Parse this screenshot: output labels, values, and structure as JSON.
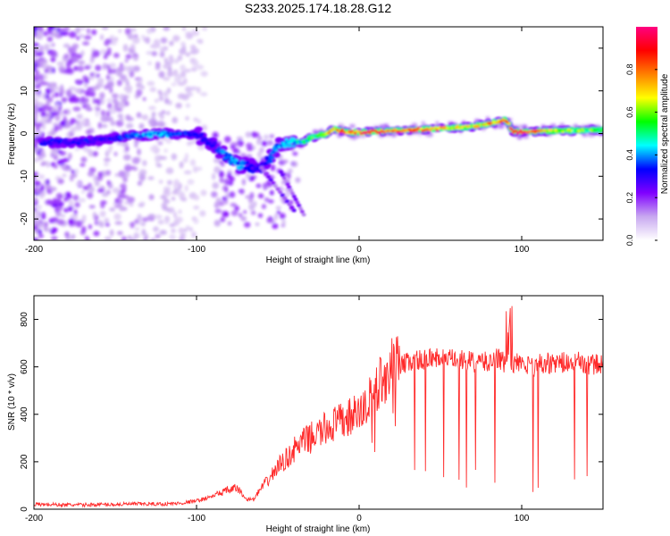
{
  "title": "S233.2025.174.18.28.G12",
  "chart_data": [
    {
      "type": "heatmap",
      "xlabel": "Height of straight line (km)",
      "ylabel": "Frequency (Hz)",
      "xlim": [
        -200,
        150
      ],
      "ylim": [
        -25,
        25
      ],
      "xticks": [
        -200,
        -100,
        0,
        100
      ],
      "yticks": [
        -20,
        -10,
        0,
        10,
        20
      ],
      "grid": false,
      "colorbar": {
        "label": "Normalized spectral amplitude",
        "range": [
          0,
          1
        ],
        "ticks": [
          "0.0",
          "0.2",
          "0.4",
          "0.6",
          "0.8"
        ],
        "colors": [
          "#ffffff",
          "#c8a8f0",
          "#8000ff",
          "#0000ff",
          "#00ffff",
          "#00ff00",
          "#ffff00",
          "#ff8000",
          "#ff0000",
          "#ff0080"
        ]
      },
      "ridge": {
        "x": [
          -195,
          -180,
          -170,
          -160,
          -150,
          -140,
          -130,
          -120,
          -110,
          -100,
          -95,
          -90,
          -85,
          -80,
          -75,
          -70,
          -65,
          -60,
          -55,
          -50,
          -45,
          -40,
          -35,
          -30,
          -25,
          -20,
          -15,
          -10,
          -5,
          0,
          10,
          20,
          30,
          40,
          50,
          60,
          70,
          75,
          80,
          85,
          90,
          95,
          100,
          110,
          120,
          130,
          140,
          150
        ],
        "y": [
          -2,
          -2,
          -2,
          -1.5,
          -1,
          -0.5,
          -0.3,
          0,
          0,
          -0.3,
          -1,
          -2.5,
          -4.5,
          -6,
          -7,
          -7.5,
          -8,
          -8,
          -6,
          -3,
          -2,
          -2,
          -2,
          -1,
          -0.5,
          0,
          1,
          0.5,
          0.3,
          0.3,
          0.5,
          0.6,
          0.8,
          1,
          1.2,
          1.4,
          1.6,
          2,
          2.4,
          2.8,
          3.2,
          0.4,
          0.4,
          0.5,
          0.6,
          0.7,
          0.8,
          0.8
        ],
        "amplitude": [
          0.3,
          0.3,
          0.3,
          0.3,
          0.3,
          0.35,
          0.4,
          0.4,
          0.35,
          0.3,
          0.3,
          0.3,
          0.35,
          0.4,
          0.4,
          0.35,
          0.3,
          0.3,
          0.35,
          0.4,
          0.4,
          0.45,
          0.5,
          0.55,
          0.6,
          0.7,
          0.8,
          0.85,
          0.85,
          0.9,
          0.95,
          0.95,
          0.9,
          0.85,
          0.8,
          0.7,
          0.7,
          0.7,
          0.8,
          0.85,
          0.9,
          0.95,
          0.95,
          0.9,
          0.7,
          0.6,
          0.6,
          0.6
        ]
      }
    },
    {
      "type": "line",
      "xlabel": "Height of straight line (km)",
      "ylabel": "SNR (10 * v/v)",
      "xlim": [
        -200,
        150
      ],
      "ylim": [
        0,
        900
      ],
      "xticks": [
        -200,
        -100,
        0,
        100
      ],
      "yticks": [
        0,
        200,
        400,
        600,
        800
      ],
      "grid": false,
      "series": [
        {
          "color": "#ff2a2a",
          "x": [
            -200,
            -190,
            -180,
            -170,
            -160,
            -150,
            -140,
            -130,
            -120,
            -110,
            -100,
            -95,
            -90,
            -85,
            -80,
            -75,
            -70,
            -65,
            -60,
            -55,
            -50,
            -45,
            -40,
            -35,
            -30,
            -25,
            -20,
            -15,
            -10,
            -5,
            0,
            5,
            10,
            15,
            20,
            25,
            30,
            35,
            40,
            45,
            50,
            55,
            60,
            65,
            70,
            75,
            80,
            85,
            90,
            95,
            100,
            105,
            110,
            115,
            120,
            125,
            130,
            135,
            140,
            145,
            150
          ],
          "y": [
            20,
            20,
            18,
            18,
            20,
            20,
            22,
            22,
            22,
            25,
            35,
            45,
            55,
            70,
            80,
            90,
            45,
            40,
            90,
            130,
            180,
            210,
            250,
            280,
            300,
            320,
            340,
            360,
            370,
            390,
            400,
            440,
            500,
            560,
            600,
            610,
            620,
            630,
            630,
            640,
            640,
            630,
            630,
            625,
            620,
            620,
            620,
            640,
            610,
            620,
            610,
            600,
            610,
            620,
            610,
            620,
            610,
            620,
            610,
            610,
            610
          ]
        }
      ]
    }
  ]
}
